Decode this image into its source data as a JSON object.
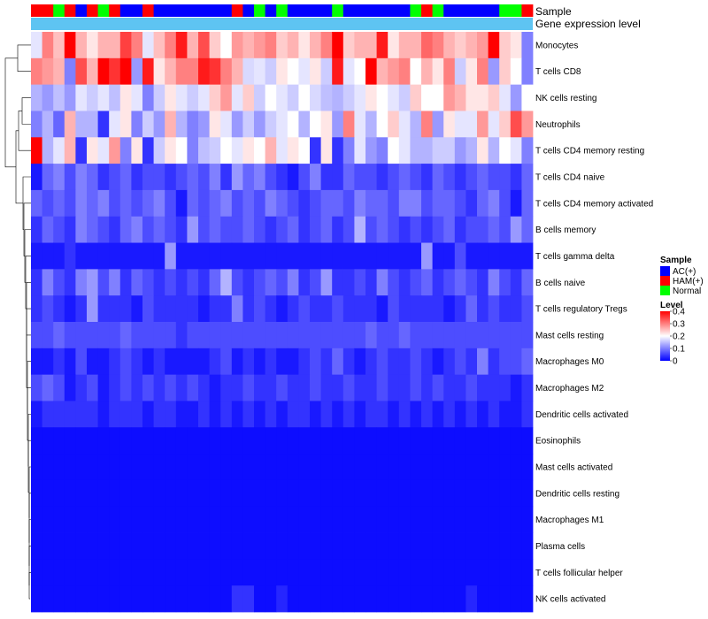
{
  "chart_data": {
    "type": "heatmap",
    "title": "",
    "annotation_labels": {
      "sample": "Sample",
      "expression": "Gene expression level"
    },
    "sample_groups": [
      "AC(+)",
      "HAM(+)",
      "Normal"
    ],
    "sample_colors": {
      "AC(+)": "#0000ff",
      "HAM(+)": "#ff0000",
      "Normal": "#00ff00"
    },
    "columns": [
      "H",
      "H",
      "N",
      "H",
      "A",
      "H",
      "N",
      "H",
      "A",
      "A",
      "H",
      "A",
      "A",
      "A",
      "A",
      "A",
      "A",
      "A",
      "H",
      "A",
      "N",
      "A",
      "N",
      "A",
      "A",
      "A",
      "A",
      "N",
      "A",
      "A",
      "A",
      "A",
      "A",
      "A",
      "N",
      "H",
      "N",
      "A",
      "A",
      "A",
      "A",
      "A",
      "N",
      "N",
      "H"
    ],
    "row_labels": [
      "Monocytes",
      "T cells CD8",
      "NK cells resting",
      "Neutrophils",
      "T cells CD4 memory resting",
      "T cells CD4 naive",
      "T cells CD4 memory activated",
      "B cells memory",
      "T cells gamma delta",
      "B cells naive",
      "T cells regulatory  Tregs",
      "Mast cells resting",
      "Macrophages M0",
      "Macrophages M2",
      "Dendritic cells activated",
      "Eosinophils",
      "Mast cells activated",
      "Dendritic cells resting",
      "Macrophages M1",
      "Plasma cells",
      "T cells follicular helper",
      "NK cells activated"
    ],
    "matrix_approx": [
      [
        0.18,
        0.3,
        0.25,
        0.4,
        0.26,
        0.22,
        0.26,
        0.26,
        0.35,
        0.3,
        0.18,
        0.25,
        0.3,
        0.38,
        0.26,
        0.34,
        0.24,
        0.2,
        0.28,
        0.26,
        0.28,
        0.3,
        0.24,
        0.26,
        0.22,
        0.26,
        0.3,
        0.4,
        0.24,
        0.26,
        0.26,
        0.38,
        0.22,
        0.26,
        0.26,
        0.32,
        0.3,
        0.26,
        0.24,
        0.26,
        0.28,
        0.4,
        0.24,
        0.22,
        0.1
      ],
      [
        0.3,
        0.28,
        0.26,
        0.1,
        0.34,
        0.26,
        0.4,
        0.36,
        0.4,
        0.12,
        0.38,
        0.22,
        0.26,
        0.3,
        0.3,
        0.38,
        0.36,
        0.3,
        0.26,
        0.17,
        0.18,
        0.16,
        0.22,
        0.2,
        0.18,
        0.22,
        0.16,
        0.38,
        0.18,
        0.2,
        0.4,
        0.26,
        0.28,
        0.3,
        0.2,
        0.26,
        0.22,
        0.3,
        0.16,
        0.22,
        0.3,
        0.12,
        0.24,
        0.2,
        0.1
      ],
      [
        0.14,
        0.12,
        0.15,
        0.12,
        0.18,
        0.16,
        0.18,
        0.15,
        0.22,
        0.18,
        0.1,
        0.16,
        0.22,
        0.18,
        0.16,
        0.18,
        0.24,
        0.28,
        0.18,
        0.24,
        0.16,
        0.2,
        0.18,
        0.16,
        0.2,
        0.17,
        0.15,
        0.14,
        0.16,
        0.18,
        0.22,
        0.2,
        0.18,
        0.16,
        0.24,
        0.2,
        0.2,
        0.28,
        0.26,
        0.22,
        0.22,
        0.24,
        0.18,
        0.12,
        0.2
      ],
      [
        0.1,
        0.14,
        0.08,
        0.26,
        0.14,
        0.14,
        0.04,
        0.18,
        0.22,
        0.1,
        0.16,
        0.12,
        0.26,
        0.14,
        0.1,
        0.12,
        0.22,
        0.18,
        0.12,
        0.16,
        0.12,
        0.16,
        0.18,
        0.2,
        0.14,
        0.2,
        0.22,
        0.12,
        0.3,
        0.18,
        0.14,
        0.2,
        0.24,
        0.18,
        0.14,
        0.3,
        0.12,
        0.22,
        0.18,
        0.18,
        0.28,
        0.18,
        0.24,
        0.34,
        0.28
      ],
      [
        0.4,
        0.14,
        0.18,
        0.26,
        0.04,
        0.22,
        0.18,
        0.28,
        0.1,
        0.22,
        0.04,
        0.16,
        0.22,
        0.2,
        0.1,
        0.15,
        0.16,
        0.2,
        0.18,
        0.22,
        0.2,
        0.26,
        0.18,
        0.22,
        0.2,
        0.04,
        0.22,
        0.04,
        0.1,
        0.18,
        0.12,
        0.1,
        0.2,
        0.18,
        0.14,
        0.14,
        0.16,
        0.16,
        0.12,
        0.14,
        0.22,
        0.14,
        0.2,
        0.18,
        0.1
      ],
      [
        0.02,
        0.08,
        0.1,
        0.06,
        0.1,
        0.08,
        0.04,
        0.06,
        0.08,
        0.04,
        0.06,
        0.06,
        0.04,
        0.06,
        0.08,
        0.06,
        0.1,
        0.04,
        0.12,
        0.08,
        0.1,
        0.06,
        0.04,
        0.02,
        0.06,
        0.1,
        0.04,
        0.04,
        0.08,
        0.06,
        0.06,
        0.04,
        0.06,
        0.08,
        0.06,
        0.04,
        0.08,
        0.06,
        0.04,
        0.06,
        0.08,
        0.06,
        0.06,
        0.04,
        0.08
      ],
      [
        0.08,
        0.06,
        0.08,
        0.06,
        0.1,
        0.08,
        0.1,
        0.06,
        0.08,
        0.06,
        0.08,
        0.1,
        0.06,
        0.02,
        0.08,
        0.06,
        0.08,
        0.1,
        0.06,
        0.08,
        0.06,
        0.1,
        0.08,
        0.06,
        0.04,
        0.06,
        0.08,
        0.08,
        0.06,
        0.1,
        0.08,
        0.08,
        0.06,
        0.1,
        0.1,
        0.06,
        0.08,
        0.08,
        0.06,
        0.04,
        0.08,
        0.1,
        0.06,
        0.02,
        0.08
      ],
      [
        0.04,
        0.08,
        0.06,
        0.04,
        0.1,
        0.08,
        0.06,
        0.04,
        0.08,
        0.1,
        0.06,
        0.08,
        0.06,
        0.04,
        0.12,
        0.06,
        0.08,
        0.06,
        0.06,
        0.08,
        0.06,
        0.04,
        0.06,
        0.08,
        0.04,
        0.06,
        0.08,
        0.04,
        0.06,
        0.14,
        0.06,
        0.08,
        0.06,
        0.04,
        0.06,
        0.04,
        0.06,
        0.08,
        0.04,
        0.06,
        0.06,
        0.08,
        0.06,
        0.12,
        0.08
      ],
      [
        0.02,
        0.02,
        0.02,
        0.04,
        0.02,
        0.02,
        0.02,
        0.02,
        0.02,
        0.02,
        0.02,
        0.02,
        0.12,
        0.02,
        0.02,
        0.02,
        0.02,
        0.02,
        0.02,
        0.02,
        0.02,
        0.02,
        0.02,
        0.02,
        0.02,
        0.02,
        0.02,
        0.02,
        0.02,
        0.02,
        0.02,
        0.02,
        0.02,
        0.02,
        0.02,
        0.12,
        0.02,
        0.02,
        0.06,
        0.02,
        0.02,
        0.02,
        0.02,
        0.02,
        0.02
      ],
      [
        0.04,
        0.1,
        0.06,
        0.04,
        0.1,
        0.12,
        0.06,
        0.1,
        0.04,
        0.08,
        0.06,
        0.04,
        0.06,
        0.04,
        0.06,
        0.04,
        0.08,
        0.14,
        0.06,
        0.04,
        0.06,
        0.08,
        0.06,
        0.1,
        0.04,
        0.06,
        0.12,
        0.04,
        0.04,
        0.06,
        0.04,
        0.1,
        0.06,
        0.04,
        0.06,
        0.08,
        0.04,
        0.06,
        0.08,
        0.06,
        0.04,
        0.1,
        0.06,
        0.04,
        0.08
      ],
      [
        0.04,
        0.06,
        0.04,
        0.02,
        0.04,
        0.12,
        0.04,
        0.04,
        0.04,
        0.02,
        0.06,
        0.04,
        0.04,
        0.04,
        0.04,
        0.02,
        0.04,
        0.04,
        0.1,
        0.04,
        0.06,
        0.04,
        0.02,
        0.04,
        0.06,
        0.04,
        0.04,
        0.06,
        0.04,
        0.04,
        0.04,
        0.02,
        0.06,
        0.04,
        0.04,
        0.04,
        0.04,
        0.02,
        0.04,
        0.08,
        0.04,
        0.06,
        0.04,
        0.04,
        0.06
      ],
      [
        0.06,
        0.06,
        0.08,
        0.06,
        0.06,
        0.06,
        0.06,
        0.06,
        0.08,
        0.06,
        0.06,
        0.06,
        0.06,
        0.04,
        0.06,
        0.06,
        0.06,
        0.06,
        0.06,
        0.06,
        0.06,
        0.06,
        0.06,
        0.06,
        0.06,
        0.06,
        0.06,
        0.06,
        0.06,
        0.06,
        0.08,
        0.06,
        0.06,
        0.08,
        0.06,
        0.06,
        0.06,
        0.06,
        0.06,
        0.06,
        0.06,
        0.06,
        0.06,
        0.06,
        0.06
      ],
      [
        0.02,
        0.02,
        0.04,
        0.02,
        0.06,
        0.02,
        0.02,
        0.04,
        0.06,
        0.04,
        0.02,
        0.04,
        0.02,
        0.02,
        0.02,
        0.02,
        0.04,
        0.06,
        0.02,
        0.04,
        0.02,
        0.04,
        0.02,
        0.02,
        0.04,
        0.06,
        0.04,
        0.08,
        0.04,
        0.02,
        0.04,
        0.06,
        0.04,
        0.04,
        0.06,
        0.04,
        0.02,
        0.04,
        0.06,
        0.04,
        0.1,
        0.04,
        0.06,
        0.06,
        0.08
      ],
      [
        0.06,
        0.08,
        0.06,
        0.02,
        0.04,
        0.06,
        0.02,
        0.04,
        0.06,
        0.04,
        0.06,
        0.04,
        0.06,
        0.04,
        0.06,
        0.04,
        0.02,
        0.04,
        0.04,
        0.06,
        0.04,
        0.04,
        0.06,
        0.04,
        0.04,
        0.06,
        0.04,
        0.04,
        0.06,
        0.04,
        0.04,
        0.06,
        0.04,
        0.04,
        0.06,
        0.04,
        0.06,
        0.04,
        0.04,
        0.06,
        0.04,
        0.04,
        0.04,
        0.02,
        0.04
      ],
      [
        0.02,
        0.04,
        0.04,
        0.04,
        0.04,
        0.04,
        0.02,
        0.04,
        0.04,
        0.04,
        0.02,
        0.04,
        0.04,
        0.02,
        0.02,
        0.04,
        0.02,
        0.04,
        0.02,
        0.04,
        0.02,
        0.04,
        0.02,
        0.04,
        0.04,
        0.02,
        0.04,
        0.02,
        0.04,
        0.02,
        0.04,
        0.04,
        0.02,
        0.04,
        0.02,
        0.04,
        0.02,
        0.04,
        0.02,
        0.04,
        0.02,
        0.04,
        0.02,
        0.02,
        0.04
      ],
      [
        0.01,
        0.01,
        0.01,
        0.01,
        0.01,
        0.01,
        0.01,
        0.01,
        0.01,
        0.01,
        0.01,
        0.01,
        0.01,
        0.01,
        0.01,
        0.01,
        0.01,
        0.01,
        0.01,
        0.01,
        0.01,
        0.01,
        0.01,
        0.01,
        0.01,
        0.01,
        0.01,
        0.01,
        0.01,
        0.01,
        0.01,
        0.01,
        0.01,
        0.01,
        0.01,
        0.01,
        0.01,
        0.01,
        0.01,
        0.01,
        0.01,
        0.01,
        0.01,
        0.01,
        0.01
      ],
      [
        0.01,
        0.01,
        0.01,
        0.01,
        0.01,
        0.01,
        0.01,
        0.01,
        0.01,
        0.01,
        0.01,
        0.01,
        0.01,
        0.01,
        0.01,
        0.01,
        0.01,
        0.01,
        0.01,
        0.01,
        0.01,
        0.01,
        0.01,
        0.01,
        0.01,
        0.01,
        0.01,
        0.01,
        0.01,
        0.01,
        0.01,
        0.01,
        0.01,
        0.01,
        0.01,
        0.01,
        0.01,
        0.01,
        0.01,
        0.01,
        0.01,
        0.01,
        0.01,
        0.01,
        0.01
      ],
      [
        0.01,
        0.01,
        0.01,
        0.01,
        0.01,
        0.01,
        0.01,
        0.01,
        0.01,
        0.01,
        0.01,
        0.01,
        0.01,
        0.01,
        0.01,
        0.01,
        0.01,
        0.01,
        0.01,
        0.01,
        0.01,
        0.01,
        0.01,
        0.01,
        0.01,
        0.01,
        0.01,
        0.01,
        0.01,
        0.01,
        0.01,
        0.01,
        0.01,
        0.01,
        0.01,
        0.01,
        0.01,
        0.01,
        0.01,
        0.01,
        0.01,
        0.01,
        0.01,
        0.01,
        0.01
      ],
      [
        0.01,
        0.01,
        0.01,
        0.01,
        0.01,
        0.01,
        0.01,
        0.01,
        0.01,
        0.01,
        0.01,
        0.01,
        0.01,
        0.01,
        0.01,
        0.01,
        0.01,
        0.01,
        0.01,
        0.01,
        0.01,
        0.01,
        0.01,
        0.01,
        0.01,
        0.01,
        0.01,
        0.01,
        0.01,
        0.01,
        0.01,
        0.01,
        0.01,
        0.01,
        0.01,
        0.01,
        0.01,
        0.01,
        0.01,
        0.01,
        0.01,
        0.01,
        0.01,
        0.01,
        0.01
      ],
      [
        0.01,
        0.01,
        0.01,
        0.01,
        0.01,
        0.01,
        0.01,
        0.01,
        0.01,
        0.01,
        0.01,
        0.01,
        0.01,
        0.01,
        0.01,
        0.01,
        0.01,
        0.01,
        0.01,
        0.01,
        0.01,
        0.01,
        0.01,
        0.01,
        0.01,
        0.01,
        0.01,
        0.01,
        0.01,
        0.01,
        0.01,
        0.01,
        0.01,
        0.01,
        0.01,
        0.01,
        0.01,
        0.01,
        0.01,
        0.01,
        0.01,
        0.01,
        0.01,
        0.01,
        0.01
      ],
      [
        0.01,
        0.01,
        0.01,
        0.01,
        0.01,
        0.01,
        0.01,
        0.01,
        0.01,
        0.01,
        0.01,
        0.01,
        0.01,
        0.01,
        0.01,
        0.01,
        0.01,
        0.01,
        0.01,
        0.01,
        0.01,
        0.01,
        0.01,
        0.01,
        0.01,
        0.01,
        0.01,
        0.01,
        0.01,
        0.01,
        0.01,
        0.01,
        0.01,
        0.01,
        0.01,
        0.01,
        0.01,
        0.01,
        0.01,
        0.01,
        0.01,
        0.01,
        0.01,
        0.01,
        0.01
      ],
      [
        0.01,
        0.01,
        0.01,
        0.01,
        0.01,
        0.01,
        0.01,
        0.01,
        0.01,
        0.01,
        0.01,
        0.01,
        0.01,
        0.01,
        0.01,
        0.01,
        0.01,
        0.01,
        0.04,
        0.04,
        0.01,
        0.01,
        0.03,
        0.01,
        0.01,
        0.01,
        0.01,
        0.01,
        0.01,
        0.01,
        0.01,
        0.01,
        0.01,
        0.01,
        0.01,
        0.01,
        0.01,
        0.01,
        0.01,
        0.03,
        0.01,
        0.01,
        0.01,
        0.01,
        0.01
      ]
    ],
    "legend": {
      "sample_title": "Sample",
      "level_title": "Level",
      "level_ticks": [
        0.4,
        0.3,
        0.2,
        0.1,
        0
      ],
      "level_tick_labels": [
        "0.4",
        "0.3",
        "0.2",
        "0.1",
        "0"
      ],
      "range": [
        0,
        0.4
      ],
      "colors": {
        "low": "#0000ff",
        "mid": "#ffffff",
        "high": "#ff0000"
      },
      "position": "right"
    },
    "expression_bar_color": "#5ec4f2"
  }
}
